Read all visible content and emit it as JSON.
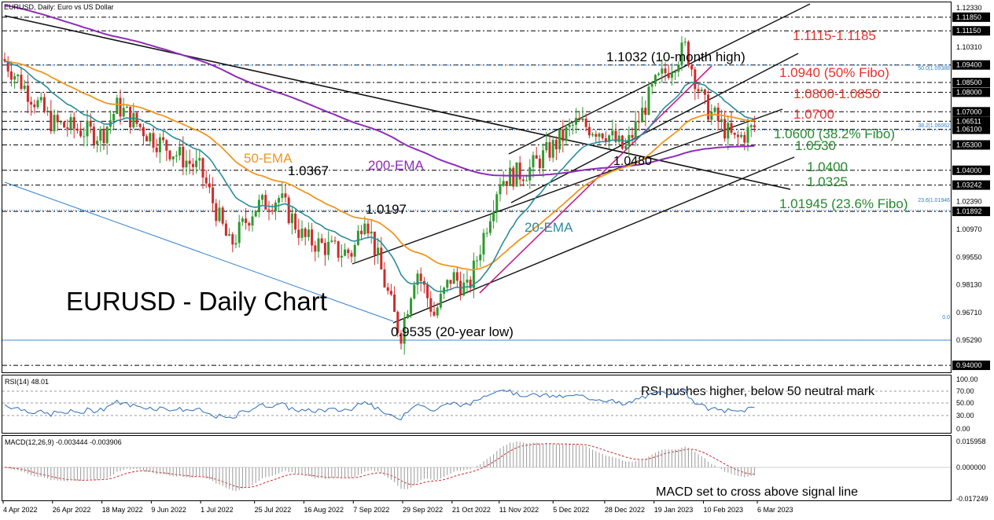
{
  "header": {
    "symbol_label": "EURUSD, Daily:  Euro vs US Dollar"
  },
  "main_title": "EURUSD - Daily Chart",
  "colors": {
    "up": "#2e9a2e",
    "down": "#d12a2a",
    "ema20": "#2a8c9c",
    "ema50": "#f0961e",
    "ema200": "#8e2bb8",
    "level_red": "#e8322b",
    "level_green": "#27882e",
    "trend": "#111111",
    "pink": "#c4208f",
    "blue_line": "#2b7fd1",
    "rsi": "#2b6cb8",
    "macd_hist": "#9a9a9a",
    "macd_signal": "#d12a2a"
  },
  "price_axis": {
    "ticks": [
      "1.12330",
      "1.11850",
      "1.11150",
      "1.10310",
      "1.09400",
      "1.08500",
      "1.08000",
      "1.07000",
      "1.06511",
      "1.06100",
      "1.05300",
      "1.04000",
      "1.03242",
      "1.02390",
      "1.01892",
      "1.00970",
      "0.99550",
      "0.98130",
      "0.96710",
      "0.95290",
      "0.94000"
    ],
    "highlighted": [
      "1.11850",
      "1.11150",
      "1.09400",
      "1.08500",
      "1.08000",
      "1.07000",
      "1.06511",
      "1.06100",
      "1.05300",
      "1.04000",
      "1.03242",
      "1.01892",
      "0.94000"
    ]
  },
  "x_axis_labels": [
    "4 Apr 2022",
    "26 Apr 2022",
    "18 May 2022",
    "9 Jun 2022",
    "1 Jul 2022",
    "25 Jul 2022",
    "16 Aug 2022",
    "7 Sep 2022",
    "29 Sep 2022",
    "21 Oct 2022",
    "11 Nov 2022",
    "5 Dec 2022",
    "28 Dec 2022",
    "19 Jan 2023",
    "10 Feb 2023",
    "6 Mar 2023"
  ],
  "annotations": {
    "peak": "1.1032 (10-month high)",
    "low": "0.9535 (20-year low)",
    "a_10367": "1.0367",
    "a_10197": "1.0197",
    "a_10480": "1.0480",
    "ema50": "50-EMA",
    "ema200": "200-EMA",
    "ema20": "20-EMA"
  },
  "levels": [
    {
      "label": "1.1115-1.1185",
      "value": 1.115,
      "color": "red"
    },
    {
      "label": "1.0940 (50% Fibo)",
      "value": 1.094,
      "color": "red"
    },
    {
      "label": "1.0800-1.0850",
      "value": 1.0825,
      "color": "red"
    },
    {
      "label": "1.0700",
      "value": 1.07,
      "color": "red"
    },
    {
      "label": "1.0600 (38.2% Fibo)",
      "value": 1.061,
      "color": "green"
    },
    {
      "label": "1.0530",
      "value": 1.053,
      "color": "green"
    },
    {
      "label": "1.0400",
      "value": 1.04,
      "color": "green"
    },
    {
      "label": "1.0325",
      "value": 1.0324,
      "color": "green"
    },
    {
      "label": "1.01945 (23.6% Fibo)",
      "value": 1.0189,
      "color": "green"
    }
  ],
  "fibo_labels": {
    "f50": "50.0|1.09388",
    "f382": "38.2|1.06062",
    "f236": "23.6|1.01946",
    "f0": "0.0"
  },
  "rsi": {
    "header": "RSI(14) 48.01",
    "note": "RSI pushes higher, below 50 neutral mark",
    "ticks": [
      "100.00",
      "70.00",
      "50.00",
      "30.00",
      "0.00"
    ]
  },
  "macd": {
    "header": "MACD(12,26,9) -0.003444 -0.003906",
    "note": "MACD set to cross above signal line",
    "ticks": [
      "0.015958",
      "0.000000",
      "-0.017249"
    ]
  },
  "chart_data": {
    "type": "candlestick",
    "title": "EURUSD - Daily Chart",
    "timeframe": "Daily",
    "x_range": [
      "4 Apr 2022",
      "6 Mar 2023"
    ],
    "ylim": [
      0.936,
      1.1265
    ],
    "close_path": [
      [
        "4 Apr 2022",
        1.097
      ],
      [
        "26 Apr 2022",
        1.064
      ],
      [
        "18 May 2022",
        1.058
      ],
      [
        "25 May 2022",
        1.073
      ],
      [
        "9 Jun 2022",
        1.057
      ],
      [
        "1 Jul 2022",
        1.04
      ],
      [
        "14 Jul 2022",
        1.001
      ],
      [
        "25 Jul 2022",
        1.021
      ],
      [
        "5 Aug 2022",
        1.026
      ],
      [
        "16 Aug 2022",
        1.005
      ],
      [
        "1 Sep 2022",
        0.998
      ],
      [
        "7 Sep 2022",
        0.998
      ],
      [
        "12 Sep 2022",
        1.019
      ],
      [
        "21 Sep 2022",
        0.982
      ],
      [
        "28 Sep 2022",
        0.955
      ],
      [
        "5 Oct 2022",
        0.99
      ],
      [
        "13 Oct 2022",
        0.966
      ],
      [
        "21 Oct 2022",
        0.986
      ],
      [
        "28 Oct 2022",
        0.978
      ],
      [
        "11 Nov 2022",
        1.035
      ],
      [
        "24 Nov 2022",
        1.04
      ],
      [
        "5 Dec 2022",
        1.052
      ],
      [
        "15 Dec 2022",
        1.064
      ],
      [
        "28 Dec 2022",
        1.06
      ],
      [
        "6 Jan 2023",
        1.05
      ],
      [
        "19 Jan 2023",
        1.083
      ],
      [
        "2 Feb 2023",
        1.103
      ],
      [
        "10 Feb 2023",
        1.074
      ],
      [
        "24 Feb 2023",
        1.055
      ],
      [
        "6 Mar 2023",
        1.063
      ]
    ],
    "key_points": {
      "high_10_month": 1.1032,
      "low_20_year": 0.9535,
      "swing_1": 1.0367,
      "swing_2": 1.0197,
      "swing_3": 1.048
    }
  }
}
